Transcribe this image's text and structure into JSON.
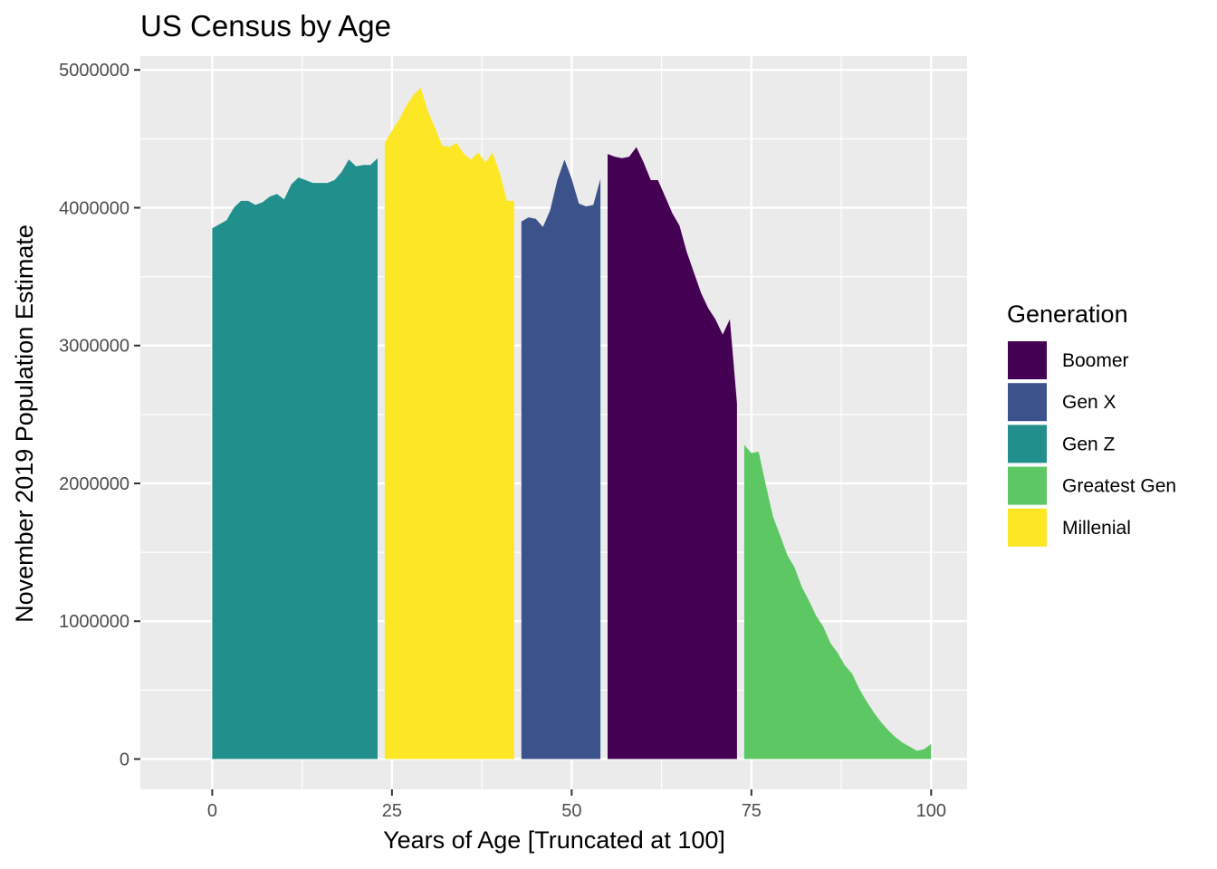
{
  "chart_data": {
    "type": "area",
    "title": "US Census by Age",
    "xlabel": "Years of Age [Truncated at 100]",
    "ylabel": "November 2019 Population Estimate",
    "xlim": [
      -10,
      105
    ],
    "ylim": [
      -220000,
      5100000
    ],
    "x_ticks": [
      0,
      25,
      50,
      75,
      100
    ],
    "x_tick_labels": [
      "0",
      "25",
      "50",
      "75",
      "100"
    ],
    "y_ticks": [
      0,
      1000000,
      2000000,
      3000000,
      4000000,
      5000000
    ],
    "y_tick_labels": [
      "0",
      "1000000",
      "2000000",
      "3000000",
      "4000000",
      "5000000"
    ],
    "grid": true,
    "legend": {
      "title": "Generation",
      "position": "right",
      "items": [
        {
          "label": "Boomer",
          "color": "#440154"
        },
        {
          "label": "Gen X",
          "color": "#3B528B"
        },
        {
          "label": "Gen Z",
          "color": "#21908C"
        },
        {
          "label": "Greatest Gen",
          "color": "#5DC863"
        },
        {
          "label": "Millenial",
          "color": "#FDE725"
        }
      ]
    },
    "series": [
      {
        "name": "Gen Z",
        "color": "#21908C",
        "x": [
          0,
          1,
          2,
          3,
          4,
          5,
          6,
          7,
          8,
          9,
          10,
          11,
          12,
          13,
          14,
          15,
          16,
          17,
          18,
          19,
          20,
          21,
          22,
          23
        ],
        "y": [
          3850000,
          3880000,
          3910000,
          4000000,
          4050000,
          4050000,
          4020000,
          4040000,
          4080000,
          4100000,
          4060000,
          4170000,
          4220000,
          4200000,
          4180000,
          4180000,
          4180000,
          4200000,
          4260000,
          4350000,
          4300000,
          4310000,
          4310000,
          4360000
        ]
      },
      {
        "name": "Millenial",
        "color": "#FDE725",
        "x": [
          24,
          25,
          26,
          27,
          28,
          29,
          30,
          31,
          32,
          33,
          34,
          35,
          36,
          37,
          38,
          39,
          40,
          41,
          42
        ],
        "y": [
          4470000,
          4560000,
          4640000,
          4740000,
          4820000,
          4870000,
          4700000,
          4580000,
          4450000,
          4440000,
          4470000,
          4390000,
          4350000,
          4400000,
          4330000,
          4400000,
          4250000,
          4050000,
          4050000
        ]
      },
      {
        "name": "Gen X",
        "color": "#3B528B",
        "x": [
          43,
          44,
          45,
          46,
          47,
          48,
          49,
          50,
          51,
          52,
          53,
          54
        ],
        "y": [
          3900000,
          3930000,
          3920000,
          3860000,
          3980000,
          4200000,
          4350000,
          4210000,
          4030000,
          4010000,
          4020000,
          4210000
        ]
      },
      {
        "name": "Boomer",
        "color": "#440154",
        "x": [
          55,
          56,
          57,
          58,
          59,
          60,
          61,
          62,
          63,
          64,
          65,
          66,
          67,
          68,
          69,
          70,
          71,
          72,
          73
        ],
        "y": [
          4390000,
          4370000,
          4360000,
          4370000,
          4440000,
          4330000,
          4200000,
          4200000,
          4080000,
          3960000,
          3870000,
          3680000,
          3530000,
          3380000,
          3270000,
          3190000,
          3080000,
          3190000,
          2580000
        ]
      },
      {
        "name": "Greatest Gen",
        "color": "#5DC863",
        "x": [
          74,
          75,
          76,
          77,
          78,
          79,
          80,
          81,
          82,
          83,
          84,
          85,
          86,
          87,
          88,
          89,
          90,
          91,
          92,
          93,
          94,
          95,
          96,
          97,
          98,
          99,
          100
        ],
        "y": [
          2280000,
          2220000,
          2230000,
          1990000,
          1760000,
          1620000,
          1480000,
          1390000,
          1250000,
          1150000,
          1040000,
          960000,
          840000,
          770000,
          680000,
          620000,
          510000,
          420000,
          340000,
          270000,
          210000,
          160000,
          120000,
          90000,
          60000,
          70000,
          110000
        ]
      }
    ]
  }
}
